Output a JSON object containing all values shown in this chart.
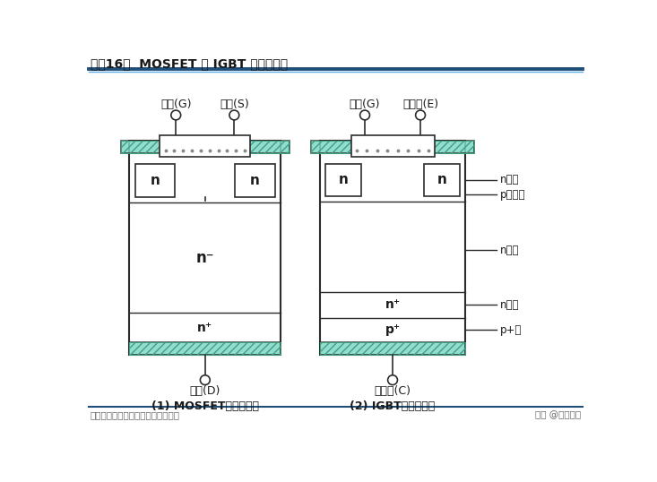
{
  "title": "图表16：  MOSFET 和 IGBT 的基本结构",
  "source": "资料来源：中信建投证券研究发展部",
  "watermark": "头条 @未来智库",
  "bg_color": "#ffffff",
  "line_color": "#1a5276",
  "ec": "#2c2c2c",
  "teal_fc": "#7fd8c8",
  "mosfet_label1": "门极(G)",
  "mosfet_label2": "源极(S)",
  "mosfet_bottom_label": "漏极(D)",
  "mosfet_caption": "(1) MOSFET的基本结构",
  "igbt_label1": "门极(G)",
  "igbt_label2": "发射极(E)",
  "igbt_bottom_label": "集电极(C)",
  "igbt_caption": "(2) IGBT的基本结构",
  "igbt_side_labels": [
    "n漏极",
    "p发射极",
    "n基极",
    "n缓冲",
    "p+层"
  ]
}
